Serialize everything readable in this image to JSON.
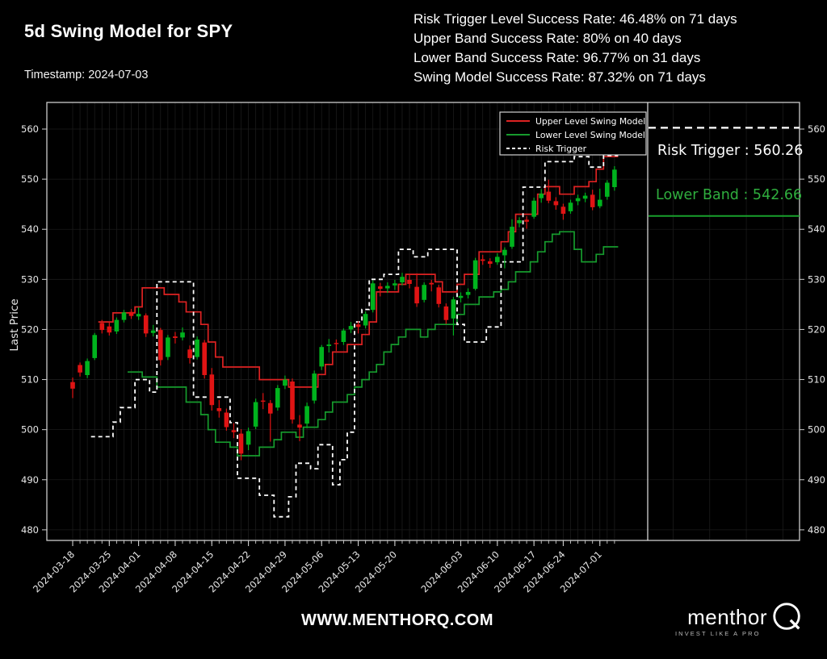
{
  "header": {
    "title": "5d Swing Model for SPY",
    "timestamp": "Timestamp: 2024-07-03",
    "stats": [
      "Risk Trigger Level Success Rate: 46.48% on 71 days",
      "Upper Band Success Rate: 80% on 40 days",
      "Lower Band Success Rate: 96.77% on 31 days",
      "Swing Model Success Rate: 87.32% on 71 days"
    ]
  },
  "footer": {
    "website": "WWW.MENTHORQ.COM",
    "logo_text": "menthor",
    "logo_tagline": "INVEST LIKE A PRO"
  },
  "chart_data": {
    "type": "candlestick",
    "title": "",
    "xlabel": "",
    "ylabel": "Last Price",
    "ylim": [
      478,
      565
    ],
    "yticks": [
      480,
      490,
      500,
      510,
      520,
      530,
      540,
      550,
      560
    ],
    "grid": true,
    "legend_position": "upper right",
    "legend": [
      {
        "label": "Upper Level Swing Model",
        "color": "#dd2222",
        "style": "solid"
      },
      {
        "label": "Lower Level Swing Model",
        "color": "#169b2d",
        "style": "solid"
      },
      {
        "label": "Risk Trigger",
        "color": "#ffffff",
        "style": "dashed"
      }
    ],
    "candle_colors": {
      "up": "#00b31e",
      "down": "#e01414"
    },
    "colors": {
      "grid": "#1b1b1b",
      "frame": "#cccccc",
      "text": "#e8e8e8",
      "trigger": "#ffffff",
      "annotation_green": "#2fae3e"
    },
    "x_tick_indices": [
      0,
      5,
      9,
      14,
      19,
      24,
      29,
      34,
      39,
      44,
      53,
      58,
      63,
      67,
      72
    ],
    "dates": [
      "2024-03-18",
      "2024-03-19",
      "2024-03-20",
      "2024-03-21",
      "2024-03-22",
      "2024-03-25",
      "2024-03-26",
      "2024-03-27",
      "2024-03-28",
      "2024-04-01",
      "2024-04-02",
      "2024-04-03",
      "2024-04-04",
      "2024-04-05",
      "2024-04-08",
      "2024-04-09",
      "2024-04-10",
      "2024-04-11",
      "2024-04-12",
      "2024-04-15",
      "2024-04-16",
      "2024-04-17",
      "2024-04-18",
      "2024-04-19",
      "2024-04-22",
      "2024-04-23",
      "2024-04-24",
      "2024-04-25",
      "2024-04-26",
      "2024-04-29",
      "2024-04-30",
      "2024-05-01",
      "2024-05-02",
      "2024-05-03",
      "2024-05-06",
      "2024-05-07",
      "2024-05-08",
      "2024-05-09",
      "2024-05-10",
      "2024-05-13",
      "2024-05-14",
      "2024-05-15",
      "2024-05-16",
      "2024-05-17",
      "2024-05-20",
      "2024-05-21",
      "2024-05-22",
      "2024-05-23",
      "2024-05-24",
      "2024-05-28",
      "2024-05-29",
      "2024-05-30",
      "2024-05-31",
      "2024-06-03",
      "2024-06-04",
      "2024-06-05",
      "2024-06-06",
      "2024-06-07",
      "2024-06-10",
      "2024-06-11",
      "2024-06-12",
      "2024-06-13",
      "2024-06-14",
      "2024-06-17",
      "2024-06-18",
      "2024-06-20",
      "2024-06-21",
      "2024-06-24",
      "2024-06-25",
      "2024-06-26",
      "2024-06-27",
      "2024-06-28",
      "2024-07-01",
      "2024-07-02",
      "2024-07-03"
    ],
    "ohlc": [
      [
        509.5,
        510.4,
        506.3,
        508.2
      ],
      [
        512.9,
        513.4,
        510.6,
        511.4
      ],
      [
        510.9,
        514.2,
        510.3,
        513.7
      ],
      [
        514.3,
        519.3,
        513.9,
        518.9
      ],
      [
        521.3,
        521.9,
        519.2,
        519.9
      ],
      [
        520.6,
        521.4,
        518.8,
        519.4
      ],
      [
        519.6,
        522.4,
        519.1,
        521.9
      ],
      [
        521.9,
        523.9,
        521.4,
        523.4
      ],
      [
        523.5,
        524.1,
        522.1,
        522.7
      ],
      [
        522.6,
        524.4,
        521.9,
        523.1
      ],
      [
        522.8,
        523.2,
        518.5,
        519.2
      ],
      [
        519.3,
        520.9,
        518.6,
        519.8
      ],
      [
        519.9,
        520.3,
        512.8,
        513.9
      ],
      [
        514.5,
        518.9,
        513.9,
        518.4
      ],
      [
        518.6,
        519.5,
        517.2,
        518.3
      ],
      [
        518.4,
        520.4,
        517.8,
        519.4
      ],
      [
        516.0,
        516.8,
        513.2,
        514.3
      ],
      [
        514.5,
        518.6,
        514.0,
        518.0
      ],
      [
        517.4,
        517.9,
        510.2,
        510.9
      ],
      [
        511.0,
        512.3,
        503.8,
        504.9
      ],
      [
        504.3,
        505.9,
        502.4,
        503.7
      ],
      [
        503.4,
        504.2,
        499.8,
        500.5
      ],
      [
        499.9,
        501.3,
        498.3,
        499.5
      ],
      [
        499.2,
        500.1,
        493.9,
        495.2
      ],
      [
        497.0,
        500.4,
        495.9,
        499.7
      ],
      [
        500.6,
        506.2,
        500.1,
        505.5
      ],
      [
        505.8,
        507.3,
        504.1,
        505.6
      ],
      [
        505.3,
        505.9,
        497.6,
        503.2
      ],
      [
        504.4,
        508.9,
        503.8,
        508.3
      ],
      [
        508.8,
        510.8,
        508.1,
        510.0
      ],
      [
        509.6,
        510.2,
        501.2,
        502.0
      ],
      [
        501.0,
        502.9,
        497.7,
        500.4
      ],
      [
        501.2,
        505.4,
        500.3,
        504.7
      ],
      [
        505.8,
        511.8,
        505.2,
        511.2
      ],
      [
        512.6,
        516.9,
        511.9,
        516.5
      ],
      [
        516.7,
        518.1,
        515.4,
        517.0
      ],
      [
        517.3,
        518.0,
        515.7,
        517.1
      ],
      [
        517.5,
        520.2,
        516.9,
        519.8
      ],
      [
        520.0,
        521.5,
        519.3,
        520.7
      ],
      [
        521.0,
        521.6,
        519.2,
        520.5
      ],
      [
        520.8,
        523.6,
        520.2,
        523.1
      ],
      [
        523.9,
        529.8,
        523.4,
        529.2
      ],
      [
        528.6,
        529.3,
        526.6,
        528.1
      ],
      [
        528.2,
        529.4,
        527.3,
        528.7
      ],
      [
        528.8,
        529.9,
        527.9,
        529.2
      ],
      [
        529.4,
        531.3,
        528.8,
        530.5
      ],
      [
        529.9,
        530.9,
        528.2,
        529.1
      ],
      [
        528.5,
        531.2,
        524.5,
        525.2
      ],
      [
        525.9,
        529.4,
        525.4,
        528.9
      ],
      [
        529.3,
        529.9,
        527.6,
        529.0
      ],
      [
        528.4,
        528.9,
        524.4,
        525.1
      ],
      [
        524.6,
        525.2,
        521.1,
        521.9
      ],
      [
        522.2,
        526.5,
        518.8,
        526.0
      ],
      [
        526.3,
        527.4,
        525.4,
        526.7
      ],
      [
        526.9,
        528.2,
        526.2,
        527.5
      ],
      [
        528.1,
        534.3,
        527.8,
        533.8
      ],
      [
        534.0,
        534.9,
        532.9,
        533.7
      ],
      [
        533.6,
        534.2,
        532.3,
        533.1
      ],
      [
        533.4,
        535.2,
        532.9,
        534.5
      ],
      [
        534.8,
        536.4,
        532.2,
        535.9
      ],
      [
        536.5,
        542.0,
        536.1,
        540.5
      ],
      [
        541.2,
        542.4,
        540.4,
        541.8
      ],
      [
        541.9,
        542.6,
        540.1,
        541.5
      ],
      [
        542.5,
        546.3,
        542.1,
        545.7
      ],
      [
        546.2,
        548.0,
        545.3,
        547.1
      ],
      [
        547.5,
        549.9,
        545.2,
        545.7
      ],
      [
        545.6,
        546.4,
        543.9,
        544.8
      ],
      [
        544.5,
        545.1,
        541.9,
        543.1
      ],
      [
        543.6,
        545.9,
        543.1,
        545.3
      ],
      [
        545.6,
        546.9,
        544.8,
        546.2
      ],
      [
        546.1,
        547.3,
        545.4,
        546.7
      ],
      [
        546.9,
        547.9,
        543.8,
        544.4
      ],
      [
        544.6,
        548.1,
        544.2,
        545.9
      ],
      [
        546.5,
        549.8,
        545.9,
        549.3
      ],
      [
        548.4,
        552.6,
        547.7,
        551.9
      ]
    ],
    "series": [
      {
        "name": "Upper Level Swing Model",
        "color": "#dd2222",
        "style": "solid",
        "values": [
          null,
          null,
          null,
          null,
          521.5,
          521.5,
          523.3,
          523.3,
          523.3,
          524.5,
          528.3,
          528.3,
          528.3,
          527,
          527,
          525.5,
          523.5,
          523.5,
          521,
          517.5,
          514.5,
          512.5,
          512.5,
          512.5,
          512.5,
          512.5,
          510,
          510,
          510,
          510,
          508.5,
          508.5,
          508.5,
          508.5,
          511,
          513,
          515.5,
          515.5,
          517,
          517,
          519,
          521.5,
          527.5,
          527.5,
          527.5,
          529,
          531,
          531,
          531,
          531,
          529.5,
          527.5,
          527.5,
          529,
          531,
          531,
          535.5,
          535.5,
          535.5,
          537.5,
          539.5,
          543,
          543,
          543,
          547,
          548.5,
          548.5,
          547,
          547,
          548.5,
          548.5,
          549.5,
          552,
          554.5,
          554.5
        ]
      },
      {
        "name": "Lower Level Swing Model",
        "color": "#169b2d",
        "style": "solid",
        "values": [
          null,
          null,
          null,
          null,
          null,
          null,
          null,
          null,
          511.5,
          511.5,
          510.5,
          510.5,
          508.5,
          508.5,
          508.5,
          508.5,
          505.5,
          505.5,
          503,
          500,
          497.5,
          497.5,
          496.5,
          494.8,
          494.8,
          494.8,
          496.5,
          496.5,
          498,
          499.5,
          499.5,
          498.5,
          500.5,
          500.5,
          502,
          503.5,
          505.5,
          505.5,
          507,
          508.5,
          510,
          511.5,
          513,
          515.5,
          517,
          518.5,
          520,
          520,
          518.5,
          520,
          521,
          521,
          521,
          523,
          525,
          525,
          526.5,
          526.5,
          527.5,
          528,
          529.5,
          531.5,
          531.5,
          533.5,
          535.5,
          537.5,
          539,
          539.5,
          539.5,
          536,
          533.5,
          533.5,
          535,
          536.5,
          536.5
        ]
      },
      {
        "name": "Risk Trigger",
        "color": "#ffffff",
        "style": "dashed",
        "values": [
          null,
          null,
          null,
          498.6,
          498.6,
          498.6,
          501.5,
          504.4,
          504.4,
          510,
          510,
          507.5,
          529.5,
          529.5,
          529.5,
          529.5,
          529.5,
          506.5,
          506.5,
          506.5,
          506.5,
          506.5,
          501.4,
          490.3,
          490.3,
          490.3,
          486.9,
          486.9,
          482.6,
          482.6,
          486.6,
          493.3,
          493.3,
          492.2,
          497,
          497,
          489,
          494,
          499.5,
          521.5,
          524,
          530,
          530,
          531,
          531,
          536,
          536,
          534.5,
          534.5,
          536,
          536,
          536,
          536,
          521,
          517.5,
          517.5,
          517.5,
          520.5,
          520.5,
          533.5,
          533.5,
          533.5,
          548.4,
          548.4,
          548.4,
          553.5,
          553.5,
          553.5,
          553.5,
          554.5,
          554.5,
          552.4,
          552.4,
          554.7,
          554.7
        ]
      }
    ],
    "annotations": [
      {
        "label": "Risk Trigger : 560.26",
        "value": 560.26,
        "color": "#ffffff",
        "line_style": "dashed"
      },
      {
        "label": "Lower Band : 542.66",
        "value": 542.66,
        "color": "#2fae3e",
        "line_style": "solid"
      }
    ]
  }
}
